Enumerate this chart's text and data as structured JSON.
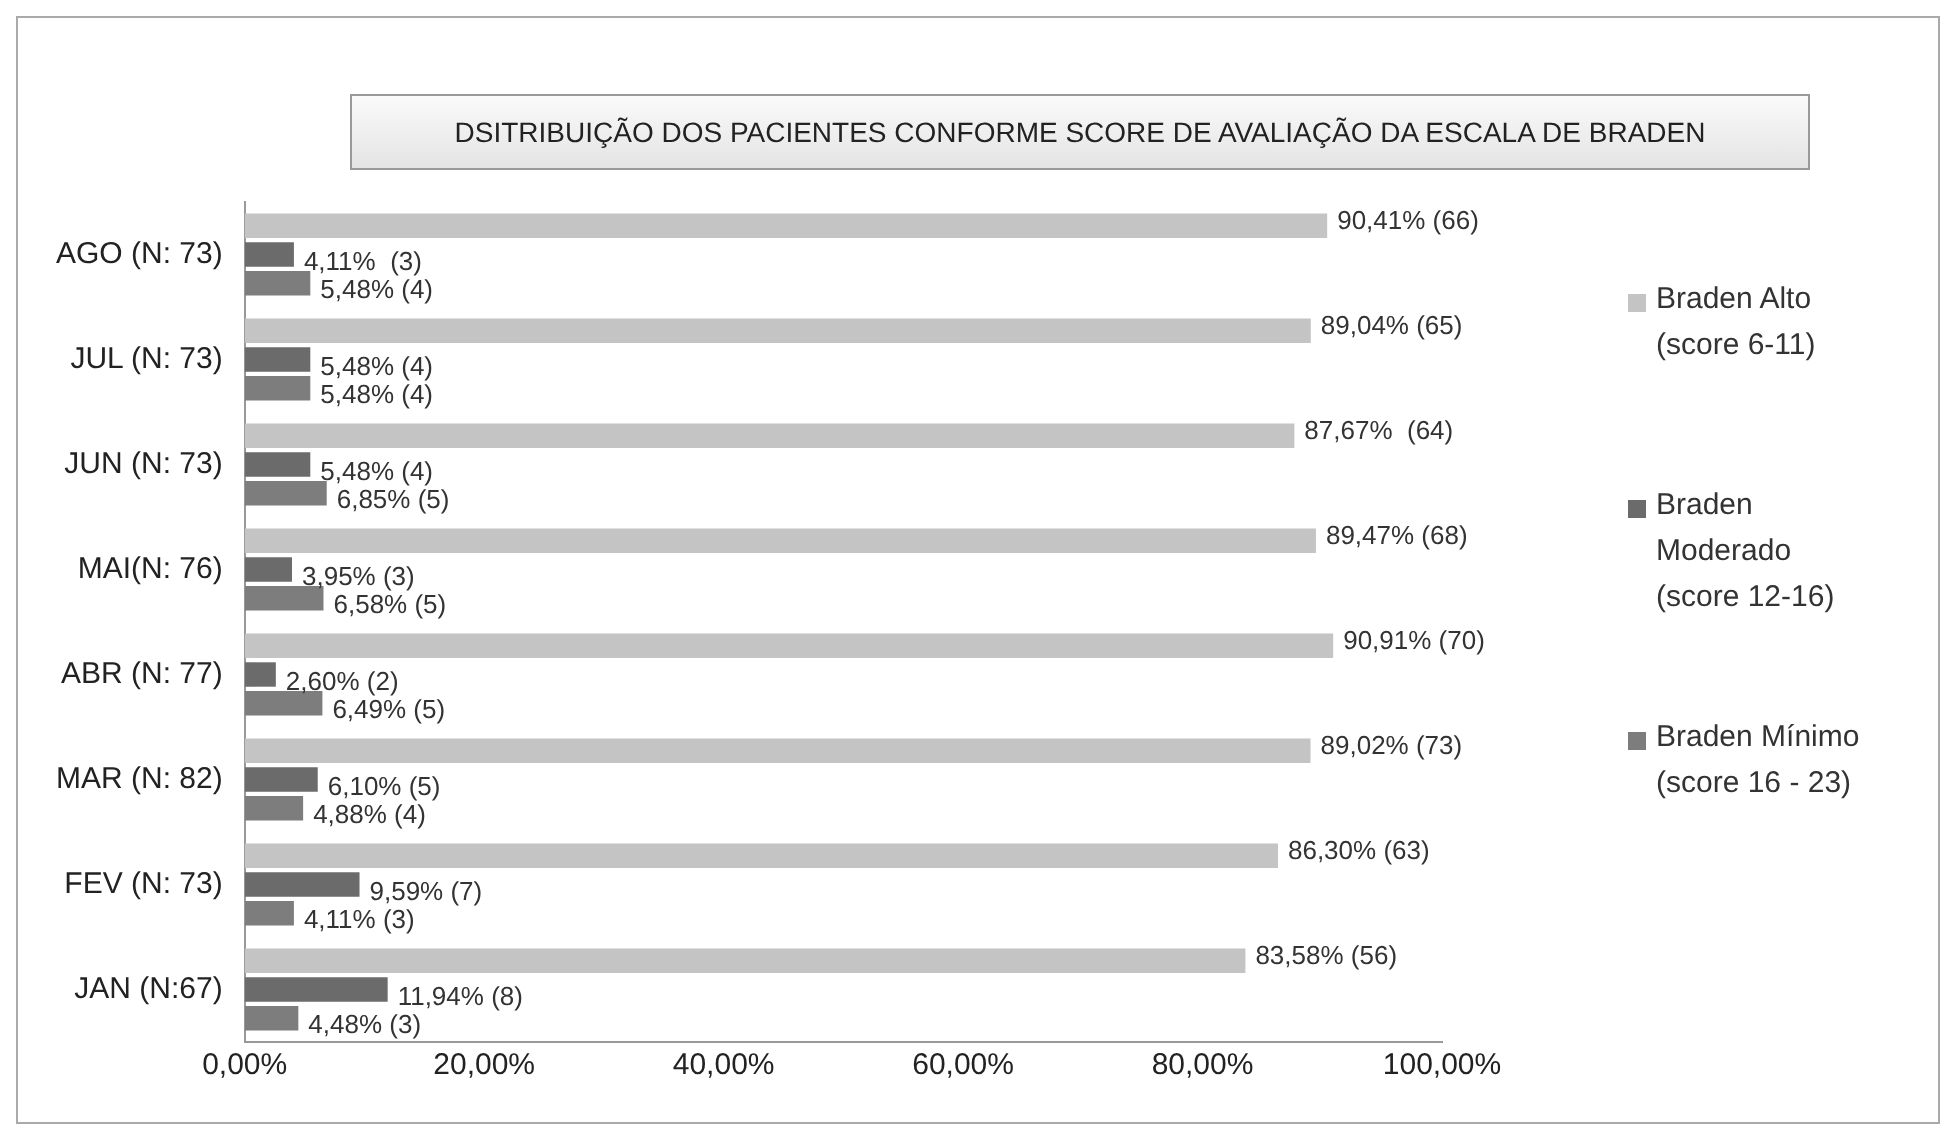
{
  "chart_data": {
    "type": "bar",
    "orientation": "horizontal",
    "title": "DSITRIBUIÇÃO DOS PACIENTES CONFORME SCORE DE AVALIAÇÃO DA ESCALA DE BRADEN",
    "categories": [
      "AGO (N: 73)",
      "JUL (N: 73)",
      "JUN (N: 73)",
      "MAI(N: 76)",
      "ABR (N: 77)",
      "MAR (N: 82)",
      "FEV (N: 73)",
      "JAN (N:67)"
    ],
    "series": [
      {
        "name": "Braden Alto (score 6-11)",
        "color": "#c4c4c4",
        "values": [
          90.41,
          89.04,
          87.67,
          89.47,
          90.91,
          89.02,
          86.3,
          83.58
        ],
        "value_labels": [
          "90,41% (66)",
          "89,04% (65)",
          "87,67%  (64)",
          "89,47% (68)",
          "90,91% (70)",
          "89,02% (73)",
          "86,30% (63)",
          "83,58% (56)"
        ]
      },
      {
        "name": "Braden Moderado (score 12-16)",
        "color": "#6b6b6b",
        "values": [
          4.11,
          5.48,
          5.48,
          3.95,
          2.6,
          6.1,
          9.59,
          11.94
        ],
        "value_labels": [
          "4,11%  (3)",
          "5,48% (4)",
          "5,48% (4)",
          "3,95% (3)",
          "2,60% (2)",
          "6,10% (5)",
          "9,59% (7)",
          "11,94% (8)"
        ]
      },
      {
        "name": "Braden Mínimo (score 16 - 23)",
        "color": "#7d7d7d",
        "values": [
          5.48,
          5.48,
          6.85,
          6.58,
          6.49,
          4.88,
          4.11,
          4.48
        ],
        "value_labels": [
          "5,48% (4)",
          "5,48% (4)",
          "6,85% (5)",
          "6,58% (5)",
          "6,49% (5)",
          "4,88% (4)",
          "4,11% (3)",
          "4,48% (3)"
        ]
      }
    ],
    "xlim": [
      0,
      100
    ],
    "xticks": [
      {
        "value": 0,
        "label": "0,00%"
      },
      {
        "value": 20,
        "label": "20,00%"
      },
      {
        "value": 40,
        "label": "40,00%"
      },
      {
        "value": 60,
        "label": "60,00%"
      },
      {
        "value": 80,
        "label": "80,00%"
      },
      {
        "value": 100,
        "label": "100,00%"
      }
    ],
    "grid": false,
    "legend": "right"
  }
}
